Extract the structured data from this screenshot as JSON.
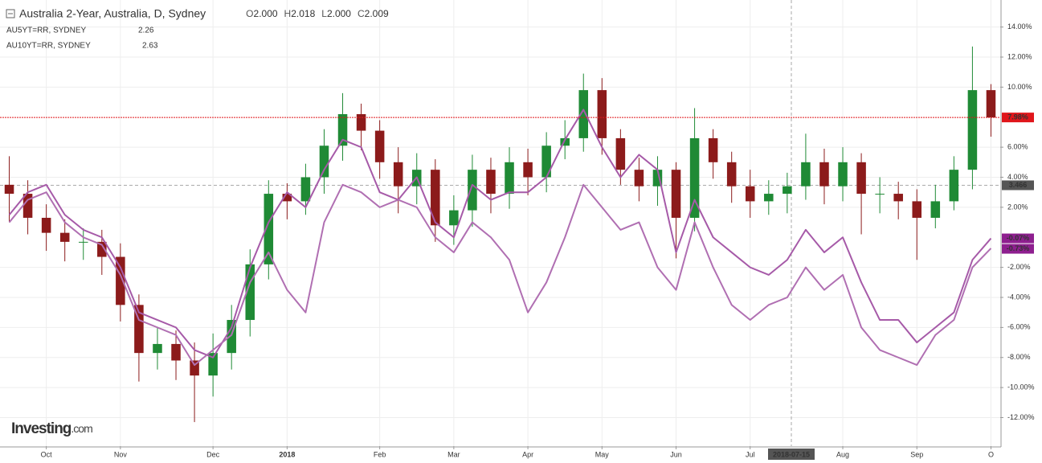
{
  "chart_data": {
    "type": "candlestick",
    "title": "Australia 2-Year, Australia, D, Sydney",
    "quote": [
      {
        "key": "O",
        "value": "2.000"
      },
      {
        "key": "H",
        "value": "2.018"
      },
      {
        "key": "L",
        "value": "2.000"
      },
      {
        "key": "C",
        "value": "2.009"
      }
    ],
    "categories": [
      null,
      null,
      "Oct",
      null,
      null,
      null,
      "Nov",
      null,
      null,
      null,
      null,
      "Dec",
      null,
      null,
      null,
      "2018",
      null,
      null,
      null,
      null,
      "Feb",
      null,
      null,
      null,
      "Mar",
      null,
      null,
      null,
      "Apr",
      null,
      null,
      null,
      "May",
      null,
      null,
      null,
      "Jun",
      null,
      null,
      null,
      "Jul",
      null,
      null,
      null,
      null,
      "Aug",
      null,
      null,
      null,
      "Sep",
      null,
      null,
      null,
      "O"
    ],
    "open": [
      3.5,
      2.9,
      1.3,
      0.3,
      -0.3,
      -0.3,
      -1.3,
      -4.5,
      -7.7,
      -7.1,
      -8.2,
      -9.2,
      -7.7,
      -5.5,
      -1.8,
      2.9,
      2.4,
      4.0,
      6.1,
      8.2,
      7.1,
      5.0,
      3.4,
      4.5,
      0.8,
      1.8,
      4.5,
      2.9,
      5.0,
      4.0,
      6.1,
      6.6,
      9.8,
      6.6,
      4.5,
      3.4,
      4.5,
      1.3,
      6.6,
      5.0,
      3.4,
      2.4,
      2.9,
      3.4,
      5.0,
      3.4,
      5.0,
      2.9,
      2.9,
      2.4,
      1.3,
      2.4,
      4.5,
      9.8
    ],
    "high": [
      5.4,
      3.8,
      2.2,
      1.2,
      0.6,
      0.5,
      -0.4,
      -3.8,
      -6.0,
      -6.2,
      -7.0,
      -6.4,
      -4.5,
      -0.8,
      3.8,
      3.6,
      4.9,
      7.2,
      9.6,
      8.9,
      7.8,
      6.0,
      5.6,
      5.2,
      2.8,
      5.5,
      5.3,
      6.0,
      5.9,
      7.0,
      7.8,
      10.9,
      10.6,
      7.2,
      5.3,
      5.4,
      5.0,
      8.6,
      7.2,
      5.7,
      4.5,
      3.8,
      4.3,
      6.9,
      5.9,
      6.0,
      5.6,
      4.0,
      3.7,
      3.2,
      3.5,
      5.4,
      12.7,
      10.2
    ],
    "low": [
      1.0,
      0.2,
      -0.9,
      -1.6,
      -1.5,
      -2.5,
      -5.6,
      -9.6,
      -8.8,
      -9.5,
      -12.3,
      -10.6,
      -8.8,
      -6.6,
      -2.8,
      1.2,
      1.5,
      2.9,
      5.1,
      5.8,
      3.9,
      1.6,
      2.2,
      -0.3,
      -0.5,
      0.7,
      1.6,
      1.9,
      2.8,
      3.0,
      5.2,
      5.7,
      5.5,
      3.5,
      2.4,
      2.1,
      -1.4,
      0.4,
      3.9,
      2.3,
      1.3,
      1.5,
      1.6,
      2.5,
      2.2,
      2.4,
      0.2,
      1.6,
      1.2,
      -1.5,
      0.6,
      1.8,
      3.2,
      6.7
    ],
    "close": [
      2.9,
      1.3,
      0.3,
      -0.3,
      -0.3,
      -1.3,
      -4.5,
      -7.7,
      -7.1,
      -8.2,
      -9.2,
      -7.7,
      -5.5,
      -1.8,
      2.9,
      2.4,
      4.0,
      6.1,
      8.2,
      7.1,
      5.0,
      3.4,
      4.5,
      0.8,
      1.8,
      4.5,
      2.9,
      5.0,
      4.0,
      6.1,
      6.6,
      9.8,
      6.6,
      4.5,
      3.4,
      4.5,
      1.3,
      6.6,
      5.0,
      3.4,
      2.4,
      2.9,
      3.4,
      5.0,
      3.4,
      5.0,
      2.9,
      2.9,
      2.4,
      1.3,
      2.4,
      4.5,
      9.8,
      7.98
    ],
    "color_up": "#1f8a35",
    "color_down": "#8c1b1b",
    "series": [
      {
        "name": "AU5YT=RR, SYDNEY",
        "legend_value": "2.26",
        "color": "#a65aa8",
        "label_color": "#8e1f8f",
        "last_label": "-0.07%",
        "values": [
          1.5,
          3.0,
          3.5,
          1.5,
          0.5,
          0.0,
          -2.0,
          -5.0,
          -5.5,
          -6.0,
          -7.5,
          -8.0,
          -6.0,
          -2.0,
          1.0,
          3.0,
          2.0,
          4.5,
          6.5,
          6.0,
          3.0,
          2.5,
          4.0,
          1.0,
          0.0,
          3.5,
          2.5,
          3.0,
          3.0,
          4.0,
          6.5,
          8.5,
          6.0,
          4.0,
          5.5,
          4.5,
          -1.0,
          2.5,
          0.0,
          -1.0,
          -2.0,
          -2.5,
          -1.5,
          0.5,
          -1.0,
          0.0,
          -3.0,
          -5.5,
          -5.5,
          -7.0,
          -6.0,
          -5.0,
          -1.5,
          -0.07
        ]
      },
      {
        "name": "AU10YT=RR, SYDNEY",
        "legend_value": "2.63",
        "color": "#b06fb2",
        "label_color": "#8e1f8f",
        "last_label": "-0.73%",
        "values": [
          1.0,
          2.5,
          3.0,
          1.0,
          0.0,
          -0.5,
          -2.5,
          -5.5,
          -6.0,
          -6.5,
          -8.5,
          -7.5,
          -6.5,
          -3.0,
          -1.0,
          -3.5,
          -5.0,
          1.0,
          3.5,
          3.0,
          2.0,
          2.5,
          2.0,
          0.0,
          -1.0,
          1.0,
          0.0,
          -1.5,
          -5.0,
          -3.0,
          0.0,
          3.5,
          2.0,
          0.5,
          1.0,
          -2.0,
          -3.5,
          1.0,
          -2.0,
          -4.5,
          -5.5,
          -4.5,
          -4.0,
          -2.0,
          -3.5,
          -2.5,
          -6.0,
          -7.5,
          -8.0,
          -8.5,
          -6.5,
          -5.5,
          -2.0,
          -0.73
        ]
      }
    ],
    "ylim": [
      -13.9,
      15.8
    ],
    "yticks": [
      {
        "value": 14,
        "label": "14.00%"
      },
      {
        "value": 12,
        "label": "12.00%"
      },
      {
        "value": 10,
        "label": "10.00%"
      },
      {
        "value": 6,
        "label": "6.00%"
      },
      {
        "value": 4,
        "label": "4.00%"
      },
      {
        "value": 2,
        "label": "2.00%"
      },
      {
        "value": -2,
        "label": "-2.00%"
      },
      {
        "value": -4,
        "label": "-4.00%"
      },
      {
        "value": -6,
        "label": "-6.00%"
      },
      {
        "value": -8,
        "label": "-8.00%"
      },
      {
        "value": -10,
        "label": "-10.00%"
      },
      {
        "value": -12,
        "label": "-12.00%"
      }
    ],
    "grid": true,
    "price_line": {
      "value": 7.98,
      "label": "7.98%",
      "color": "#e0161b"
    },
    "crosshair": {
      "y": {
        "value": 3.466,
        "label": "3.466"
      },
      "x_label": "2018-07-15"
    },
    "logo": {
      "name": "Investing",
      "suffix": ".com"
    }
  }
}
